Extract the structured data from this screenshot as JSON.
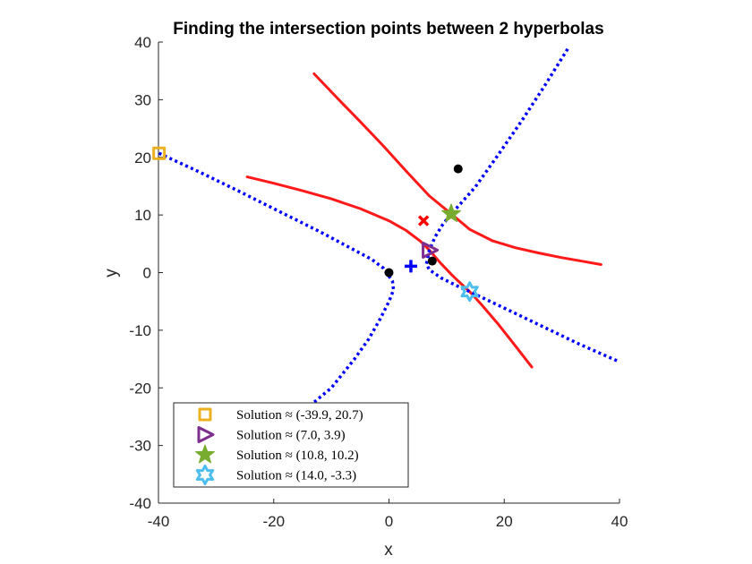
{
  "chart_data": {
    "type": "line",
    "title": "Finding the intersection points between 2 hyperbolas",
    "xlabel": "x",
    "ylabel": "y",
    "xlim": [
      -40,
      40
    ],
    "ylim": [
      -40,
      40
    ],
    "xticks": [
      -40,
      -20,
      0,
      20,
      40
    ],
    "yticks": [
      -40,
      -30,
      -20,
      -10,
      0,
      10,
      20,
      30,
      40
    ],
    "grid": false,
    "legend_position": "bottom-left",
    "series": [
      {
        "kind": "hyperbola-branch",
        "color": "#ff0000",
        "style": "solid",
        "x": [
          -13.0,
          -9.0,
          -5.0,
          -1.0,
          3.0,
          7.0,
          10.8,
          14.0,
          18.0,
          22.0,
          26.0,
          30.0,
          34.0,
          36.8
        ],
        "y": [
          34.5,
          30.3,
          26.2,
          22.0,
          17.6,
          13.3,
          10.2,
          7.5,
          5.5,
          4.3,
          3.4,
          2.6,
          1.9,
          1.4
        ]
      },
      {
        "kind": "hyperbola-branch",
        "color": "#ff0000",
        "style": "solid",
        "x": [
          -24.6,
          -20.0,
          -15.0,
          -10.0,
          -5.0,
          0.0,
          3.0,
          5.5,
          7.0,
          9.0,
          11.0,
          13.0,
          14.0,
          16.0,
          19.0,
          22.0,
          24.8
        ],
        "y": [
          16.6,
          15.5,
          14.2,
          12.8,
          11.1,
          9.0,
          7.3,
          5.4,
          3.9,
          1.6,
          -0.5,
          -2.4,
          -3.3,
          -5.5,
          -9.0,
          -12.8,
          -16.4
        ]
      },
      {
        "kind": "hyperbola-branch",
        "color": "#0000ff",
        "style": "dotted",
        "x": [
          -39.9,
          -33.0,
          -26.0,
          -19.0,
          -12.0,
          -6.0,
          -3.0,
          -1.0,
          0.6,
          0.8,
          0.0,
          -1.5,
          -3.5,
          -6.0,
          -10.0,
          -13.0
        ],
        "y": [
          20.7,
          17.5,
          14.1,
          10.6,
          7.1,
          3.9,
          2.3,
          0.8,
          -1.5,
          -3.0,
          -5.0,
          -8.0,
          -11.5,
          -15.0,
          -20.0,
          -22.5
        ]
      },
      {
        "kind": "hyperbola-branch",
        "color": "#0000ff",
        "style": "dotted",
        "x": [
          31.0,
          27.0,
          23.0,
          19.0,
          15.0,
          12.0,
          10.8,
          9.3,
          8.0,
          7.0,
          6.5,
          7.0,
          9.0,
          12.0,
          14.0,
          18.0,
          23.0,
          28.0,
          33.0,
          38.0,
          39.8
        ],
        "y": [
          38.8,
          32.4,
          26.3,
          20.5,
          14.9,
          11.5,
          10.2,
          8.3,
          6.2,
          3.9,
          1.5,
          0.5,
          -0.9,
          -2.4,
          -3.3,
          -5.2,
          -7.6,
          -10.0,
          -12.4,
          -14.6,
          -15.4
        ]
      }
    ],
    "markers": [
      {
        "kind": "focus",
        "shape": "dot",
        "color": "#000000",
        "x": 0.0,
        "y": 0.0
      },
      {
        "kind": "focus",
        "shape": "dot",
        "color": "#000000",
        "x": 7.5,
        "y": 2.0
      },
      {
        "kind": "focus",
        "shape": "dot",
        "color": "#000000",
        "x": 12.0,
        "y": 18.0
      },
      {
        "kind": "center",
        "shape": "x-cross",
        "color": "#ff0000",
        "x": 6.0,
        "y": 9.0
      },
      {
        "kind": "center",
        "shape": "plus",
        "color": "#0000ff",
        "x": 3.8,
        "y": 1.1
      }
    ],
    "solutions": [
      {
        "label": "Solution ≈ (-39.9, 20.7)",
        "x": -39.9,
        "y": 20.7,
        "shape": "square",
        "color": "#edb120"
      },
      {
        "label": "Solution ≈ (7.0, 3.9)",
        "x": 7.0,
        "y": 3.9,
        "shape": "triangle-right",
        "color": "#7e2f8e"
      },
      {
        "label": "Solution ≈ (10.8, 10.2)",
        "x": 10.8,
        "y": 10.2,
        "shape": "pentagram",
        "color": "#77ac30"
      },
      {
        "label": "Solution ≈ (14.0, -3.3)",
        "x": 14.0,
        "y": -3.3,
        "shape": "hexagram",
        "color": "#4dbeee"
      }
    ]
  }
}
